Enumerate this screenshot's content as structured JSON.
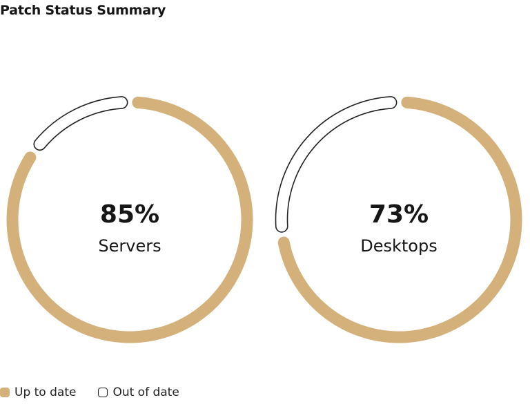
{
  "title": "Patch Status Summary",
  "colors": {
    "up_to_date": "#D4B07A",
    "out_of_date_stroke": "#222222",
    "out_of_date_fill": "#ffffff"
  },
  "legend": {
    "up_to_date": "Up to date",
    "out_of_date": "Out of date"
  },
  "chart_data": [
    {
      "type": "pie",
      "title": "",
      "categories": [
        "Up to date",
        "Out of date"
      ],
      "values": [
        85,
        15
      ],
      "center_value": "85%",
      "center_label": "Servers"
    },
    {
      "type": "pie",
      "title": "",
      "categories": [
        "Up to date",
        "Out of date"
      ],
      "values": [
        73,
        27
      ],
      "center_value": "73%",
      "center_label": "Desktops"
    }
  ]
}
